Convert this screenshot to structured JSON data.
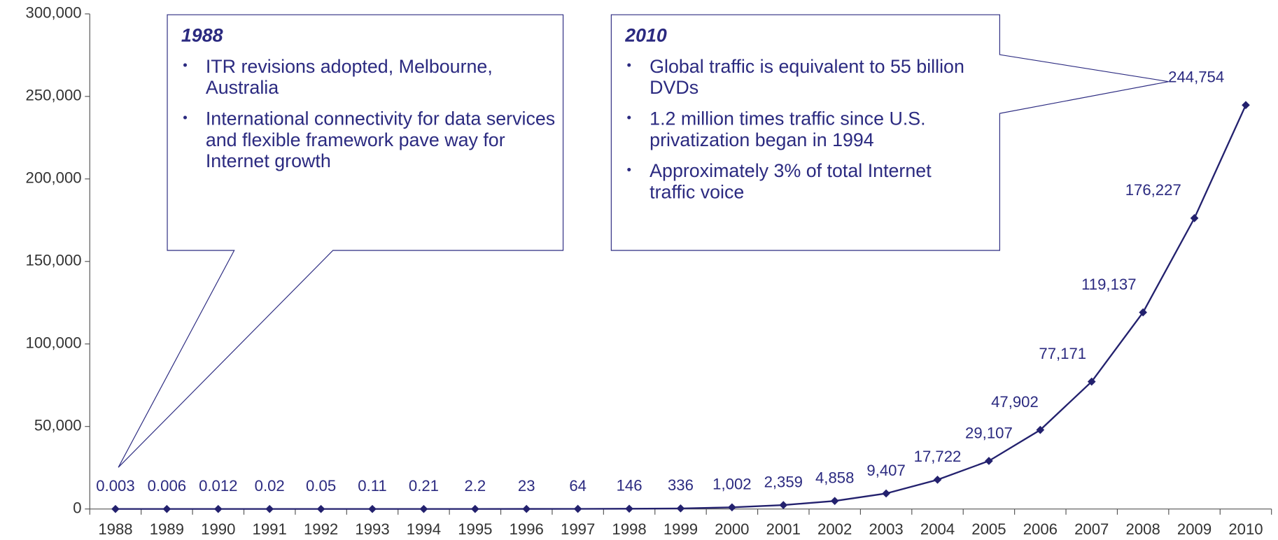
{
  "chart_data": {
    "type": "line",
    "categories": [
      "1988",
      "1989",
      "1990",
      "1991",
      "1992",
      "1993",
      "1994",
      "1995",
      "1996",
      "1997",
      "1998",
      "1999",
      "2000",
      "2001",
      "2002",
      "2003",
      "2004",
      "2005",
      "2006",
      "2007",
      "2008",
      "2009",
      "2010"
    ],
    "values": [
      0.003,
      0.006,
      0.012,
      0.02,
      0.05,
      0.11,
      0.21,
      2.2,
      23,
      64,
      146,
      336,
      1002,
      2359,
      4858,
      9407,
      17722,
      29107,
      47902,
      77171,
      119137,
      176227,
      244754
    ],
    "value_labels": [
      "0.003",
      "0.006",
      "0.012",
      "0.02",
      "0.05",
      "0.11",
      "0.21",
      "2.2",
      "23",
      "64",
      "146",
      "336",
      "1,002",
      "2,359",
      "4,858",
      "9,407",
      "17,722",
      "29,107",
      "47,902",
      "77,171",
      "119,137",
      "176,227",
      "244,754"
    ],
    "color": "#23216e",
    "ylim": [
      0,
      300000
    ],
    "yticks": [
      0,
      {
        "value": 50000,
        "label": "50,000"
      },
      {
        "value": 100000,
        "label": "100,000"
      },
      {
        "value": 150000,
        "label": "150,000"
      },
      {
        "value": 200000,
        "label": "200,000"
      },
      {
        "value": 250000,
        "label": "250,000"
      },
      {
        "value": 300000,
        "label": "300,000"
      }
    ],
    "annotations": [
      {
        "title": "1988",
        "bullets": [
          "ITR revisions adopted, Melbourne, Australia",
          "International connectivity for data services and flexible framework pave way for Internet growth"
        ]
      },
      {
        "title": "2010",
        "bullets": [
          "Global traffic is equivalent to 55 billion DVDs",
          "1.2 million times traffic since U.S. privatization began in 1994",
          "Approximately 3% of total Internet traffic voice"
        ]
      }
    ]
  }
}
